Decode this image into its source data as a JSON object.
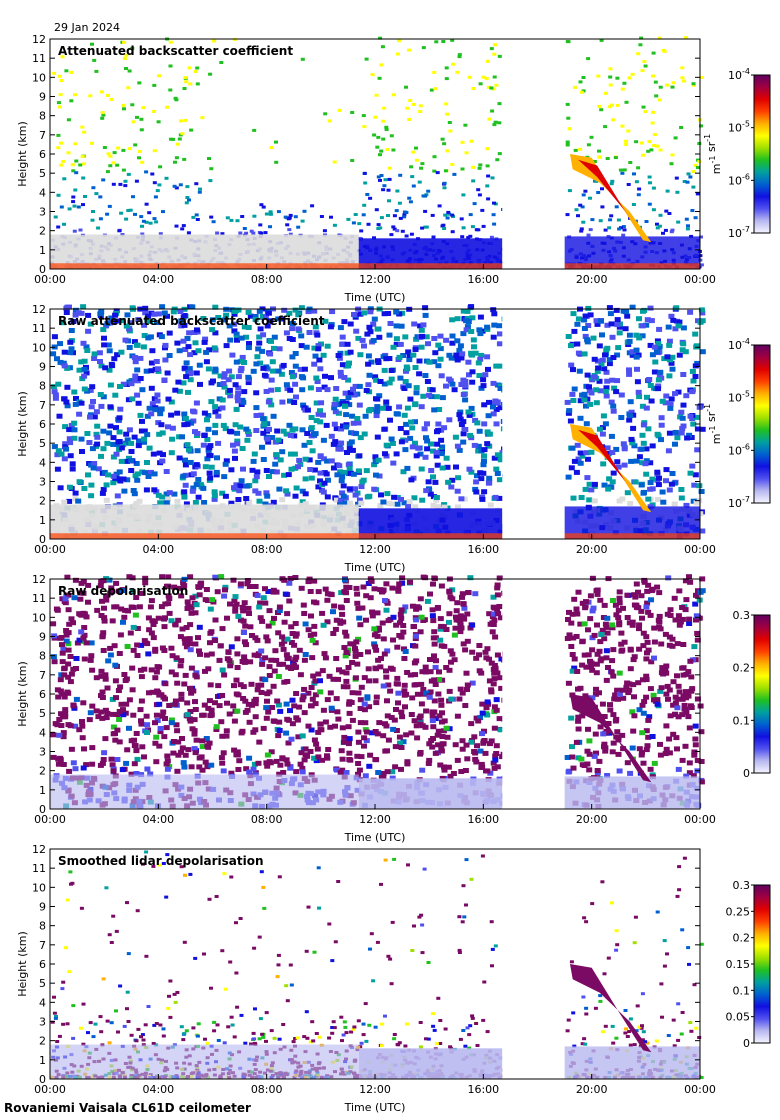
{
  "date_label": "29 Jan 2024",
  "footer": "Rovaniemi Vaisala CL61D ceilometer",
  "colors": {
    "frame": "#000000",
    "gap": "#ffffff",
    "noise_grey": "#dcdcdc",
    "deep_purple": "#7a0a64",
    "colormap": [
      "#f4f4ff",
      "#b8b8f0",
      "#5050f0",
      "#1010e0",
      "#0060d0",
      "#00a0a0",
      "#20c020",
      "#a0e000",
      "#ffff00",
      "#ffb000",
      "#ff4000",
      "#e00000",
      "#a00040",
      "#600060"
    ]
  },
  "chart_data": [
    {
      "type": "heatmap",
      "title": "Attenuated backscatter coefficient",
      "xlabel": "Time (UTC)",
      "ylabel": "Height (km)",
      "x_ticks": [
        "00:00",
        "04:00",
        "08:00",
        "12:00",
        "16:00",
        "20:00",
        "00:00"
      ],
      "x_range_hours": [
        0,
        24
      ],
      "y_ticks": [
        0,
        1,
        2,
        3,
        4,
        5,
        6,
        7,
        8,
        9,
        10,
        11,
        12
      ],
      "ylim": [
        0,
        12
      ],
      "data_gap_hours": [
        16.7,
        19.0
      ],
      "colorbar": {
        "scale": "log",
        "ticks": [
          "10-7",
          "10-6",
          "10-5",
          "10-4"
        ],
        "tick_base": "10",
        "tick_exps": [
          "-7",
          "-6",
          "-5",
          "-4"
        ],
        "unit": "m-1 sr-1"
      }
    },
    {
      "type": "heatmap",
      "title": "Raw attenuated backscatter coefficient",
      "xlabel": "Time (UTC)",
      "ylabel": "Height (km)",
      "x_ticks": [
        "00:00",
        "04:00",
        "08:00",
        "12:00",
        "16:00",
        "20:00",
        "00:00"
      ],
      "x_range_hours": [
        0,
        24
      ],
      "y_ticks": [
        0,
        1,
        2,
        3,
        4,
        5,
        6,
        7,
        8,
        9,
        10,
        11,
        12
      ],
      "ylim": [
        0,
        12
      ],
      "data_gap_hours": [
        16.7,
        19.0
      ],
      "colorbar": {
        "scale": "log",
        "ticks": [
          "10-7",
          "10-6",
          "10-5",
          "10-4"
        ],
        "tick_base": "10",
        "tick_exps": [
          "-7",
          "-6",
          "-5",
          "-4"
        ],
        "unit": "m-1 sr-1"
      }
    },
    {
      "type": "heatmap",
      "title": "Raw depolarisation",
      "xlabel": "Time (UTC)",
      "ylabel": "Height (km)",
      "x_ticks": [
        "00:00",
        "04:00",
        "08:00",
        "12:00",
        "16:00",
        "20:00",
        "00:00"
      ],
      "x_range_hours": [
        0,
        24
      ],
      "y_ticks": [
        0,
        1,
        2,
        3,
        4,
        5,
        6,
        7,
        8,
        9,
        10,
        11,
        12
      ],
      "ylim": [
        0,
        12
      ],
      "data_gap_hours": [
        16.7,
        19.0
      ],
      "colorbar": {
        "scale": "linear",
        "range": [
          0,
          0.3
        ],
        "ticks": [
          "0",
          "0.1",
          "0.2",
          "0.3"
        ]
      }
    },
    {
      "type": "heatmap",
      "title": "Smoothed lidar depolarisation",
      "xlabel": "Time (UTC)",
      "ylabel": "Height (km)",
      "x_ticks": [
        "00:00",
        "04:00",
        "08:00",
        "12:00",
        "16:00",
        "20:00",
        "00:00"
      ],
      "x_range_hours": [
        0,
        24
      ],
      "y_ticks": [
        0,
        1,
        2,
        3,
        4,
        5,
        6,
        7,
        8,
        9,
        10,
        11,
        12
      ],
      "ylim": [
        0,
        12
      ],
      "data_gap_hours": [
        16.7,
        19.0
      ],
      "colorbar": {
        "scale": "linear",
        "range": [
          0,
          0.3
        ],
        "ticks": [
          "0",
          "0.05",
          "0.1",
          "0.15",
          "0.2",
          "0.25",
          "0.3"
        ]
      }
    }
  ]
}
